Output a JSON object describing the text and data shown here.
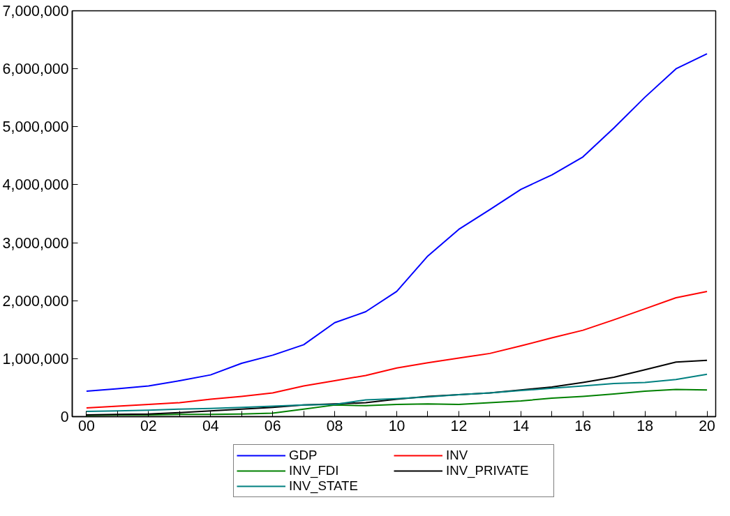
{
  "chart_data": {
    "type": "line",
    "x": [
      2000,
      2001,
      2002,
      2003,
      2004,
      2005,
      2006,
      2007,
      2008,
      2009,
      2010,
      2011,
      2012,
      2013,
      2014,
      2015,
      2016,
      2017,
      2018,
      2019,
      2020
    ],
    "series": [
      {
        "name": "GDP",
        "color": "#0000ff",
        "values": [
          440000,
          480000,
          530000,
          620000,
          720000,
          920000,
          1060000,
          1240000,
          1620000,
          1810000,
          2160000,
          2770000,
          3230000,
          3570000,
          3920000,
          4170000,
          4480000,
          4980000,
          5510000,
          6000000,
          6260000
        ]
      },
      {
        "name": "INV",
        "color": "#ff0000",
        "values": [
          150000,
          180000,
          210000,
          240000,
          300000,
          350000,
          410000,
          530000,
          620000,
          710000,
          840000,
          930000,
          1010000,
          1090000,
          1220000,
          1360000,
          1490000,
          1670000,
          1860000,
          2050000,
          2160000
        ]
      },
      {
        "name": "INV_FDI",
        "color": "#008000",
        "values": [
          20000,
          30000,
          30000,
          40000,
          40000,
          45000,
          60000,
          130000,
          200000,
          190000,
          210000,
          220000,
          210000,
          240000,
          270000,
          320000,
          350000,
          390000,
          440000,
          470000,
          460000
        ]
      },
      {
        "name": "INV_PRIVATE",
        "color": "#000000",
        "values": [
          30000,
          40000,
          45000,
          70000,
          100000,
          130000,
          160000,
          200000,
          220000,
          240000,
          300000,
          350000,
          380000,
          410000,
          460000,
          510000,
          590000,
          680000,
          810000,
          940000,
          970000
        ]
      },
      {
        "name": "INV_STATE",
        "color": "#008080",
        "values": [
          90000,
          100000,
          110000,
          130000,
          140000,
          160000,
          180000,
          200000,
          210000,
          290000,
          310000,
          340000,
          380000,
          410000,
          450000,
          490000,
          530000,
          570000,
          590000,
          640000,
          730000
        ]
      }
    ],
    "xlim": [
      1999.54,
      2020.28
    ],
    "xticks": [
      {
        "value": 2000,
        "label": "00"
      },
      {
        "value": 2001,
        "label": null
      },
      {
        "value": 2002,
        "label": "02"
      },
      {
        "value": 2003,
        "label": null
      },
      {
        "value": 2004,
        "label": "04"
      },
      {
        "value": 2005,
        "label": null
      },
      {
        "value": 2006,
        "label": "06"
      },
      {
        "value": 2007,
        "label": null
      },
      {
        "value": 2008,
        "label": "08"
      },
      {
        "value": 2009,
        "label": null
      },
      {
        "value": 2010,
        "label": "10"
      },
      {
        "value": 2011,
        "label": null
      },
      {
        "value": 2012,
        "label": "12"
      },
      {
        "value": 2013,
        "label": null
      },
      {
        "value": 2014,
        "label": "14"
      },
      {
        "value": 2015,
        "label": null
      },
      {
        "value": 2016,
        "label": "16"
      },
      {
        "value": 2017,
        "label": null
      },
      {
        "value": 2018,
        "label": "18"
      },
      {
        "value": 2019,
        "label": null
      },
      {
        "value": 2020,
        "label": "20"
      }
    ],
    "ylim": [
      0,
      7000000
    ],
    "yticks": [
      0,
      {
        "value": 1000000,
        "label": "1,000,000"
      },
      {
        "value": 2000000,
        "label": "2,000,000"
      },
      {
        "value": 3000000,
        "label": "3,000,000"
      },
      {
        "value": 4000000,
        "label": "4,000,000"
      },
      {
        "value": 5000000,
        "label": "5,000,000"
      },
      {
        "value": 6000000,
        "label": "6,000,000"
      },
      {
        "value": 7000000,
        "label": "7,000,000"
      }
    ],
    "grid": false,
    "legend": "bottom",
    "line_style": "solid",
    "marker": "none"
  }
}
